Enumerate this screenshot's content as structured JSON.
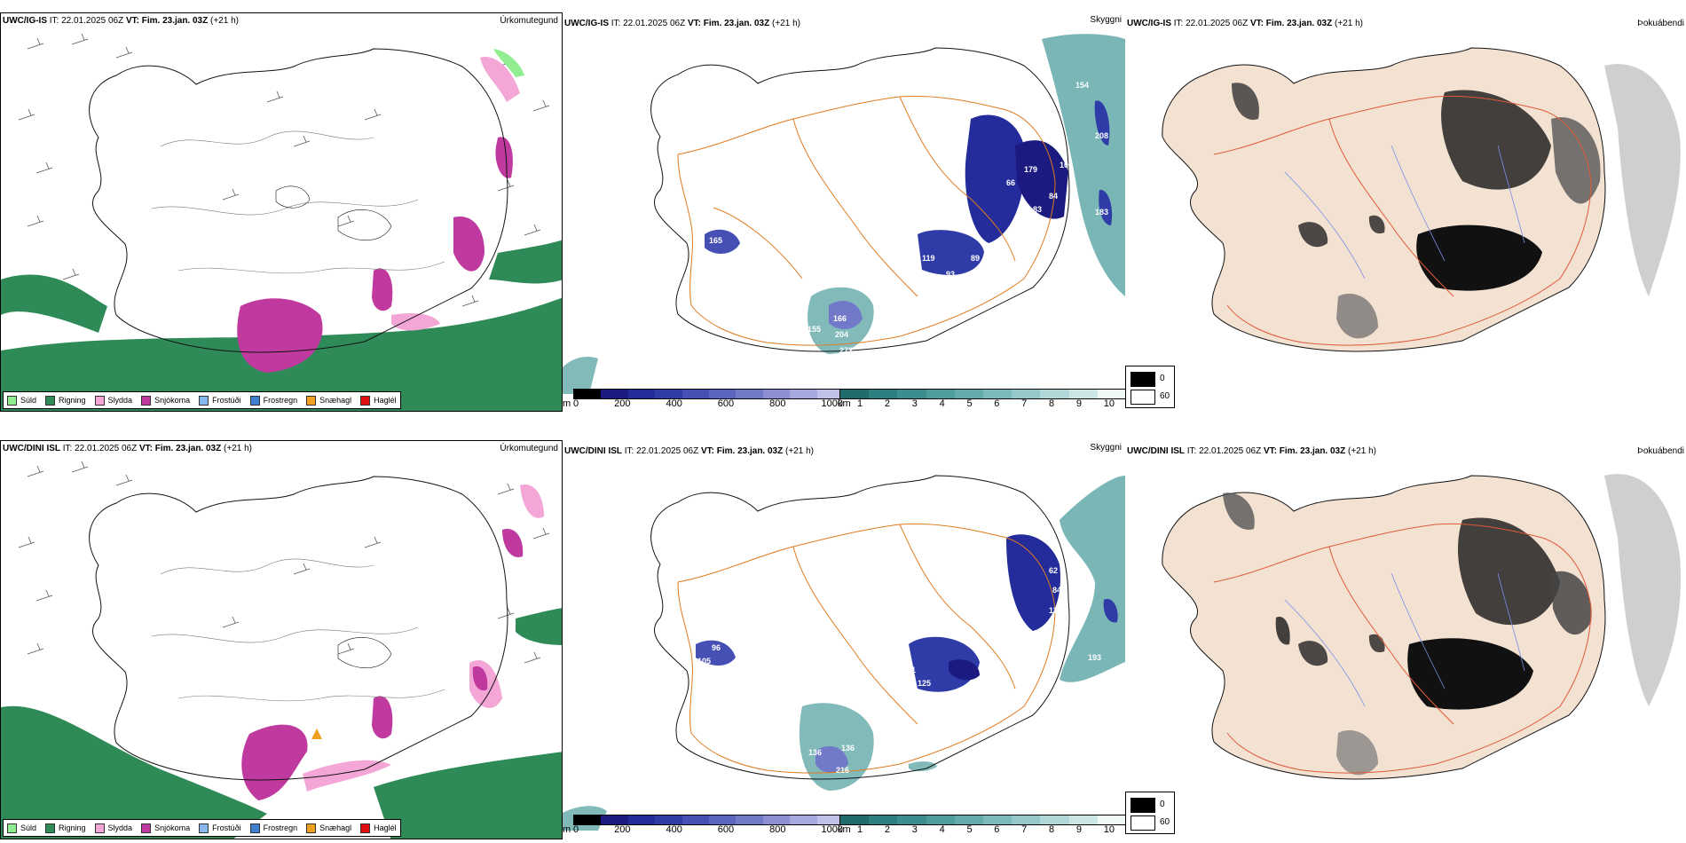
{
  "rows": [
    {
      "model": "UWC/IG-IS",
      "it_label": "IT:",
      "it_value": "22.01.2025 06Z",
      "vt_label": "VT:",
      "vt_value": "Fim. 23.jan. 03Z",
      "lead": "(+21 h)",
      "panels": {
        "precip": {
          "field": "Úrkomutegund"
        },
        "clouds": {
          "field": "Skyggni",
          "labels": [
            "154",
            "208",
            "183",
            "66",
            "106",
            "179",
            "84",
            "66",
            "83",
            "17",
            "70",
            "165",
            "11",
            "119",
            "119",
            "89",
            "93",
            "70",
            "166",
            "155",
            "204",
            "272",
            "115"
          ]
        },
        "fog": {
          "field": "Þokuábendi"
        }
      }
    },
    {
      "model": "UWC/DINI ISL",
      "it_label": "IT:",
      "it_value": "22.01.2025 06Z",
      "vt_label": "VT:",
      "vt_value": "Fim. 23.jan. 03Z",
      "lead": "(+21 h)",
      "panels": {
        "precip": {
          "field": "Úrkomutegund"
        },
        "clouds": {
          "field": "Skyggni",
          "labels": [
            "62",
            "84",
            "119",
            "193",
            "96",
            "105",
            "121",
            "125",
            "94",
            "106",
            "153",
            "18",
            "136",
            "136",
            "216"
          ]
        },
        "fog": {
          "field": "Þokuábendi"
        }
      }
    }
  ],
  "precip_legend": [
    {
      "label": "Súld",
      "color": "#90ee90"
    },
    {
      "label": "Rigning",
      "color": "#2e8b57"
    },
    {
      "label": "Slydda",
      "color": "#f4a6d7"
    },
    {
      "label": "Snjókoma",
      "color": "#c0399e"
    },
    {
      "label": "Frostúði",
      "color": "#87b8f0"
    },
    {
      "label": "Frostregn",
      "color": "#3f7fd0"
    },
    {
      "label": "Snæhagl",
      "color": "#f0a020"
    },
    {
      "label": "Haglél",
      "color": "#e01010"
    }
  ],
  "cloud_base_bar": {
    "unit": "m",
    "ticks": [
      "0",
      "200",
      "400",
      "600",
      "800",
      "1000"
    ],
    "colors": [
      "#000000",
      "#1a1a80",
      "#232c9a",
      "#2f3ca8",
      "#4650b4",
      "#5b64bf",
      "#7379c9",
      "#8b8fd2",
      "#a5a8dd",
      "#bfc1e8"
    ]
  },
  "visibility_bar": {
    "unit": "km",
    "ticks": [
      "1",
      "2",
      "3",
      "4",
      "5",
      "6",
      "7",
      "8",
      "9",
      "10"
    ],
    "colors": [
      "#1f6b6b",
      "#2a7f7f",
      "#3a8e8e",
      "#4d9d9d",
      "#63abab",
      "#7bbaba",
      "#95c9c9",
      "#b0d8d8",
      "#cce6e6",
      "#f0f8f8"
    ]
  },
  "fog_legend": [
    {
      "label": "0",
      "color": "#000000"
    },
    {
      "label": "60",
      "color": "#ffffff"
    }
  ]
}
